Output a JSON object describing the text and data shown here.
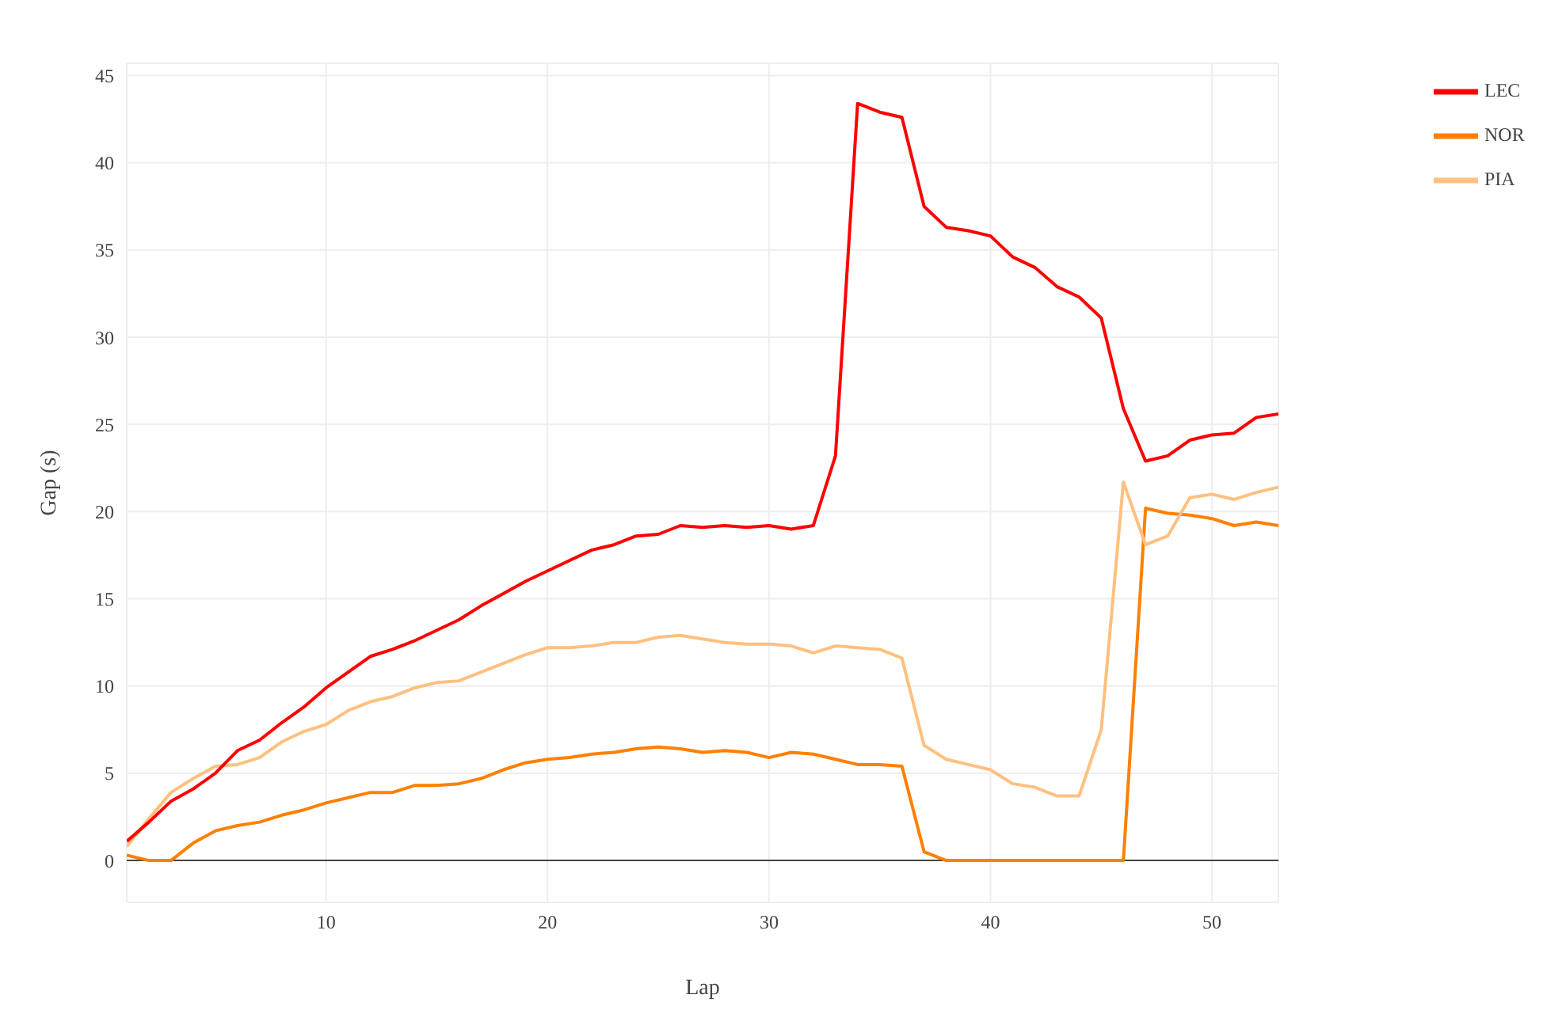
{
  "chart_data": {
    "type": "line",
    "xlabel": "Lap",
    "ylabel": "Gap (s)",
    "x": [
      1,
      2,
      3,
      4,
      5,
      6,
      7,
      8,
      9,
      10,
      11,
      12,
      13,
      14,
      15,
      16,
      17,
      18,
      19,
      20,
      21,
      22,
      23,
      24,
      25,
      26,
      27,
      28,
      29,
      30,
      31,
      32,
      33,
      34,
      35,
      36,
      37,
      38,
      39,
      40,
      41,
      42,
      43,
      44,
      45,
      46,
      47,
      48,
      49,
      50,
      51,
      52,
      53
    ],
    "series": [
      {
        "name": "NOR",
        "color": "#ff8000",
        "values": [
          0.3,
          0,
          0,
          1.0,
          1.7,
          2.0,
          2.2,
          2.6,
          2.9,
          3.3,
          3.6,
          3.9,
          3.9,
          4.3,
          4.3,
          4.4,
          4.7,
          5.2,
          5.6,
          5.8,
          5.9,
          6.1,
          6.2,
          6.4,
          6.5,
          6.4,
          6.2,
          6.3,
          6.2,
          5.9,
          6.2,
          6.1,
          5.8,
          5.5,
          5.5,
          5.4,
          0.5,
          0,
          0,
          0,
          0,
          0,
          0,
          0,
          0,
          0,
          20.2,
          19.9,
          19.8,
          19.6,
          19.2,
          19.4,
          19.2
        ]
      },
      {
        "name": "PIA",
        "color": "#ffc080",
        "values": [
          0.8,
          2.4,
          3.9,
          4.7,
          5.4,
          5.5,
          5.9,
          6.8,
          7.4,
          7.8,
          8.6,
          9.1,
          9.4,
          9.9,
          10.2,
          10.3,
          10.8,
          11.3,
          11.8,
          12.2,
          12.2,
          12.3,
          12.5,
          12.5,
          12.8,
          12.9,
          12.7,
          12.5,
          12.4,
          12.4,
          12.3,
          11.9,
          12.3,
          12.2,
          12.1,
          11.6,
          6.6,
          5.8,
          5.5,
          5.2,
          4.4,
          4.2,
          3.7,
          3.7,
          7.5,
          21.7,
          18.1,
          18.6,
          20.8,
          21.0,
          20.7,
          21.1,
          21.4
        ]
      },
      {
        "name": "LEC",
        "color": "#ff0000",
        "values": [
          1.1,
          2.2,
          3.4,
          4.1,
          5.0,
          6.3,
          6.9,
          7.9,
          8.8,
          9.9,
          10.8,
          11.7,
          12.1,
          12.6,
          13.2,
          13.8,
          14.6,
          15.3,
          16.0,
          16.6,
          17.2,
          17.8,
          18.1,
          18.6,
          18.7,
          19.2,
          19.1,
          19.2,
          19.1,
          19.2,
          19.0,
          19.2,
          23.2,
          43.4,
          42.9,
          42.6,
          37.5,
          36.3,
          36.1,
          35.8,
          34.6,
          34.0,
          32.9,
          32.3,
          31.1,
          25.9,
          22.9,
          23.2,
          24.1,
          24.4,
          24.5,
          25.4,
          25.6
        ]
      }
    ],
    "xlim": [
      1,
      53
    ],
    "xticks": [
      10,
      20,
      30,
      40,
      50
    ],
    "ylim": [
      -2.4,
      45.7
    ],
    "yticks": [
      0,
      5,
      10,
      15,
      20,
      25,
      30,
      35,
      40,
      45
    ],
    "ref_lines": [
      {
        "axis": "y",
        "value": 0,
        "color": "#444444"
      }
    ],
    "grid": true,
    "legend": "top right",
    "marker": "none",
    "line_style": "solid"
  }
}
